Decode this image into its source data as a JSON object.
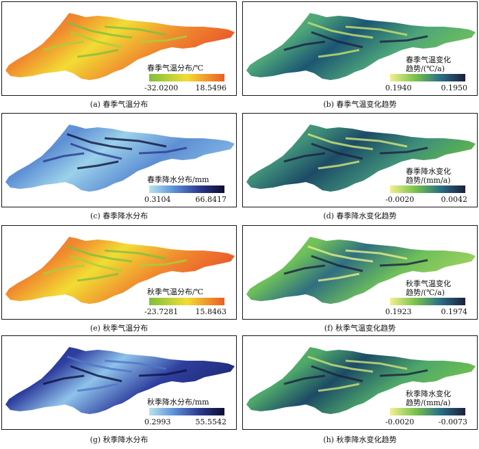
{
  "panels": [
    {
      "id": "a",
      "caption": "(a) 春季气温分布",
      "legend": {
        "title": "春季气温分布/℃",
        "title_line2": "",
        "min": "-32.0200",
        "max": "18.5496",
        "colors": [
          "#7ec03c",
          "#f2dc34",
          "#ee5d22"
        ]
      },
      "map_colors": [
        "#e9572a",
        "#f08a2e",
        "#f2dc34",
        "#a7cf3c",
        "#7ec03c"
      ]
    },
    {
      "id": "b",
      "caption": "(b) 春季气温变化趋势",
      "legend": {
        "title": "春季气温变化",
        "title_line2": "趋势/(℃/a)",
        "min": "0.1940",
        "max": "0.1950",
        "colors": [
          "#f2f08f",
          "#79c24c",
          "#2a6f86",
          "#1b1f3b"
        ]
      },
      "map_colors": [
        "#6ec05a",
        "#4da57a",
        "#1c5673",
        "#1b2040",
        "#c9e26a"
      ]
    },
    {
      "id": "c",
      "caption": "(c) 春季降水分布",
      "legend": {
        "title": "春季降水分布/mm",
        "title_line2": "",
        "min": "0.3104",
        "max": "66.8417",
        "colors": [
          "#b8e4ee",
          "#5b8fd6",
          "#2d3a8f",
          "#0b0d2e"
        ]
      },
      "map_colors": [
        "#7fb4e3",
        "#5e8fd4",
        "#9bd1ea",
        "#2d3a8f",
        "#101438"
      ]
    },
    {
      "id": "d",
      "caption": "(d) 春季降水变化趋势",
      "legend": {
        "title": "春季降水变化",
        "title_line2": "趋势/(mm/a)",
        "min": "-0.0020",
        "max": "0.0042",
        "colors": [
          "#f2f08f",
          "#79c24c",
          "#2a6f86",
          "#1b1f3b"
        ]
      },
      "map_colors": [
        "#5fb84a",
        "#3f8f7a",
        "#1c4b66",
        "#1b2040",
        "#d6e878"
      ]
    },
    {
      "id": "e",
      "caption": "(e) 秋季气温分布",
      "legend": {
        "title": "秋季气温分布/℃",
        "title_line2": "",
        "min": "-23.7281",
        "max": "15.8463",
        "colors": [
          "#7ec03c",
          "#f2dc34",
          "#ee5d22"
        ]
      },
      "map_colors": [
        "#e9572a",
        "#f08a2e",
        "#f2dc34",
        "#a7cf3c",
        "#7ec03c"
      ]
    },
    {
      "id": "f",
      "caption": "(f) 秋季气温变化趋势",
      "legend": {
        "title": "秋季气温变化",
        "title_line2": "趋势/(℃/a)",
        "min": "0.1923",
        "max": "0.1974",
        "colors": [
          "#f2f08f",
          "#79c24c",
          "#2a6f86",
          "#1b1f3b"
        ]
      },
      "map_colors": [
        "#9fd060",
        "#6ec05a",
        "#2f6f80",
        "#1b2040",
        "#e8ef8a"
      ]
    },
    {
      "id": "g",
      "caption": "(g) 秋季降水分布",
      "legend": {
        "title": "秋季降水分布/mm",
        "title_line2": "",
        "min": "0.2993",
        "max": "55.5542",
        "colors": [
          "#b8e4ee",
          "#5b8fd6",
          "#2d3a8f",
          "#0b0d2e"
        ]
      },
      "map_colors": [
        "#1f2a78",
        "#2f3f9f",
        "#8fc3ea",
        "#0e1240",
        "#4f76c8"
      ]
    },
    {
      "id": "h",
      "caption": "(h) 秋季降水变化趋势",
      "legend": {
        "title": "秋季降水变化",
        "title_line2": "趋势/(mm/a)",
        "min": "-0.0020",
        "max": "-0.0073",
        "colors": [
          "#f2f08f",
          "#79c24c",
          "#2a6f86",
          "#1b1f3b"
        ]
      },
      "map_colors": [
        "#6fc04e",
        "#4ea86a",
        "#1c4b66",
        "#1b2040",
        "#cfe27a"
      ]
    }
  ]
}
